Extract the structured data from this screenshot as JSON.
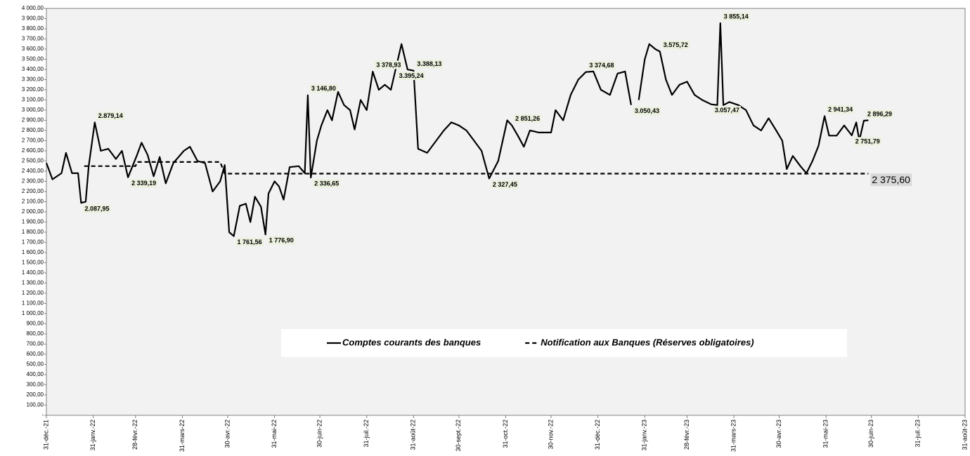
{
  "chart_data": {
    "type": "line",
    "xlim": [
      "2021-12-31",
      "2023-08-31"
    ],
    "xticks": [
      {
        "value": "2021-12-31",
        "label": "31-déc.-21"
      },
      {
        "value": "2022-01-31",
        "label": "31-janv.-22"
      },
      {
        "value": "2022-02-28",
        "label": "28-févr.-22"
      },
      {
        "value": "2022-03-31",
        "label": "31-mars-22"
      },
      {
        "value": "2022-04-30",
        "label": "30-avr.-22"
      },
      {
        "value": "2022-05-31",
        "label": "31-mai-22"
      },
      {
        "value": "2022-06-30",
        "label": "30-juin-22"
      },
      {
        "value": "2022-07-31",
        "label": "31-juil.-22"
      },
      {
        "value": "2022-08-31",
        "label": "31-août-22"
      },
      {
        "value": "2022-09-30",
        "label": "30-sept.-22"
      },
      {
        "value": "2022-10-31",
        "label": "31-oct.-22"
      },
      {
        "value": "2022-11-30",
        "label": "30-nov.-22"
      },
      {
        "value": "2022-12-31",
        "label": "31-déc.-22"
      },
      {
        "value": "2023-01-31",
        "label": "31-janv.-23"
      },
      {
        "value": "2023-02-28",
        "label": "28-févr.-23"
      },
      {
        "value": "2023-03-31",
        "label": "31-mars-23"
      },
      {
        "value": "2023-04-30",
        "label": "30-avr.-23"
      },
      {
        "value": "2023-05-31",
        "label": "31-mai-23"
      },
      {
        "value": "2023-06-30",
        "label": "30-juin-23"
      },
      {
        "value": "2023-07-31",
        "label": "31-juil.-23"
      },
      {
        "value": "2023-08-31",
        "label": "31-août-23"
      }
    ],
    "ylim": [
      0,
      4000
    ],
    "yticks": [
      {
        "value": 0,
        "label": "-"
      },
      {
        "value": 100,
        "label": "100,00"
      },
      {
        "value": 200,
        "label": "200,00"
      },
      {
        "value": 300,
        "label": "300,00"
      },
      {
        "value": 400,
        "label": "400,00"
      },
      {
        "value": 500,
        "label": "500,00"
      },
      {
        "value": 600,
        "label": "600,00"
      },
      {
        "value": 700,
        "label": "700,00"
      },
      {
        "value": 800,
        "label": "800,00"
      },
      {
        "value": 900,
        "label": "900,00"
      },
      {
        "value": 1000,
        "label": "1 000,00"
      },
      {
        "value": 1100,
        "label": "1 100,00"
      },
      {
        "value": 1200,
        "label": "1 200,00"
      },
      {
        "value": 1300,
        "label": "1 300,00"
      },
      {
        "value": 1400,
        "label": "1 400,00"
      },
      {
        "value": 1500,
        "label": "1 500,00"
      },
      {
        "value": 1600,
        "label": "1 600,00"
      },
      {
        "value": 1700,
        "label": "1 700,00"
      },
      {
        "value": 1800,
        "label": "1 800,00"
      },
      {
        "value": 1900,
        "label": "1 900,00"
      },
      {
        "value": 2000,
        "label": "2 000,00"
      },
      {
        "value": 2100,
        "label": "2 100,00"
      },
      {
        "value": 2200,
        "label": "2 200,00"
      },
      {
        "value": 2300,
        "label": "2 300,00"
      },
      {
        "value": 2400,
        "label": "2 400,00"
      },
      {
        "value": 2500,
        "label": "2 500,00"
      },
      {
        "value": 2600,
        "label": "2 600,00"
      },
      {
        "value": 2700,
        "label": "2 700,00"
      },
      {
        "value": 2800,
        "label": "2 800,00"
      },
      {
        "value": 2900,
        "label": "2 900,00"
      },
      {
        "value": 3000,
        "label": "3 000,00"
      },
      {
        "value": 3100,
        "label": "3 100,00"
      },
      {
        "value": 3200,
        "label": "3 200,00"
      },
      {
        "value": 3300,
        "label": "3 300,00"
      },
      {
        "value": 3400,
        "label": "3 400,00"
      },
      {
        "value": 3500,
        "label": "3 500,00"
      },
      {
        "value": 3600,
        "label": "3 600,00"
      },
      {
        "value": 3700,
        "label": "3 700,00"
      },
      {
        "value": 3800,
        "label": "3 800,00"
      },
      {
        "value": 3900,
        "label": "3 900,00"
      },
      {
        "value": 4000,
        "label": "4 000,00"
      }
    ],
    "grid": false,
    "legend": "bottom",
    "series": [
      {
        "name": "Comptes courants des banques",
        "color": "#000000",
        "dash": false,
        "x": [
          "2021-12-31",
          "2022-01-04",
          "2022-01-10",
          "2022-01-13",
          "2022-01-17",
          "2022-01-21",
          "2022-01-23",
          "2022-01-26",
          "2022-01-28",
          "2022-02-01",
          "2022-02-05",
          "2022-02-10",
          "2022-02-15",
          "2022-02-19",
          "2022-02-23",
          "2022-03-01",
          "2022-03-04",
          "2022-03-08",
          "2022-03-12",
          "2022-03-16",
          "2022-03-20",
          "2022-03-25",
          "2022-04-01",
          "2022-04-05",
          "2022-04-10",
          "2022-04-15",
          "2022-04-20",
          "2022-04-25",
          "2022-04-28",
          "2022-05-01",
          "2022-05-04",
          "2022-05-08",
          "2022-05-12",
          "2022-05-15",
          "2022-05-18",
          "2022-05-22",
          "2022-05-25",
          "2022-05-27",
          "2022-05-31",
          "2022-06-03",
          "2022-06-06",
          "2022-06-10",
          "2022-06-16",
          "2022-06-20",
          "2022-06-22",
          "2022-06-24",
          "2022-06-28",
          "2022-07-01",
          "2022-07-05",
          "2022-07-08",
          "2022-07-12",
          "2022-07-16",
          "2022-07-20",
          "2022-07-23",
          "2022-07-27",
          "2022-07-31",
          "2022-08-04",
          "2022-08-08",
          "2022-08-12",
          "2022-08-16",
          "2022-08-19",
          "2022-08-23",
          "2022-08-27",
          "2022-08-31",
          "2022-09-03",
          "2022-09-09",
          "2022-09-15",
          "2022-09-20",
          "2022-09-25",
          "2022-09-30",
          "2022-10-05",
          "2022-10-10",
          "2022-10-15",
          "2022-10-20",
          "2022-10-26",
          "2022-11-01",
          "2022-11-04",
          "2022-11-08",
          "2022-11-12",
          "2022-11-16",
          "2022-11-22",
          "2022-11-30",
          "2022-12-03",
          "2022-12-08",
          "2022-12-13",
          "2022-12-18",
          "2022-12-23",
          "2022-12-28",
          "2023-01-02",
          "2023-01-08",
          "2023-01-13",
          "2023-01-18",
          "2023-01-22",
          "2023-01-24",
          "2023-01-27",
          "2023-01-31",
          "2023-02-03",
          "2023-02-07",
          "2023-02-10",
          "2023-02-14",
          "2023-02-18",
          "2023-02-23",
          "2023-02-28",
          "2023-03-05",
          "2023-03-10",
          "2023-03-16",
          "2023-03-20",
          "2023-03-22",
          "2023-03-24",
          "2023-03-28",
          "2023-04-03",
          "2023-04-08",
          "2023-04-13",
          "2023-04-18",
          "2023-04-23",
          "2023-04-28",
          "2023-05-02",
          "2023-05-05",
          "2023-05-09",
          "2023-05-14",
          "2023-05-18",
          "2023-05-22",
          "2023-05-26",
          "2023-05-30",
          "2023-06-02",
          "2023-06-07",
          "2023-06-12",
          "2023-06-17",
          "2023-06-20",
          "2023-06-22",
          "2023-06-25",
          "2023-06-28"
        ],
        "values": [
          2480,
          2320,
          2380,
          2580,
          2380,
          2380,
          2087.95,
          2100,
          2450,
          2879.14,
          2600,
          2620,
          2520,
          2600,
          2339.19,
          2560,
          2680,
          2560,
          2350,
          2540,
          2280,
          2480,
          2600,
          2640,
          2500,
          2480,
          2200,
          2300,
          2460,
          1800,
          1761.56,
          2060,
          2080,
          1900,
          2150,
          2050,
          1776.9,
          2180,
          2300,
          2250,
          2120,
          2440,
          2450,
          2380,
          3146.8,
          2336.65,
          2700,
          2850,
          3000,
          2900,
          3180,
          3050,
          3000,
          2810,
          3100,
          3000,
          3378.93,
          3200,
          3250,
          3200,
          3395.24,
          3650,
          3400,
          3388.13,
          2620,
          2580,
          2700,
          2800,
          2880,
          2850,
          2800,
          2700,
          2600,
          2327.45,
          2500,
          2900,
          2851.26,
          2750,
          2640,
          2800,
          2780,
          2780,
          3000,
          2900,
          3150,
          3300,
          3374.68,
          3380,
          3200,
          3150,
          3360,
          3380,
          3050.43,
          null,
          3100,
          3500,
          3650,
          3600,
          3575.72,
          3300,
          3150,
          3250,
          3280,
          3150,
          3100,
          3057.47,
          3050,
          3855.14,
          3050,
          3080,
          3050,
          3000,
          2850,
          2800,
          2920,
          2800,
          2700,
          2420,
          2550,
          2450,
          2380,
          2500,
          2650,
          2941.34,
          2750,
          2750,
          2850,
          2751.79,
          2880,
          2700,
          2896.29,
          2900
        ],
        "value_labels": [
          null,
          null,
          null,
          null,
          null,
          null,
          "2.087,95",
          null,
          null,
          "2.879,14",
          null,
          null,
          null,
          null,
          "2 339,19",
          null,
          null,
          null,
          null,
          null,
          null,
          null,
          null,
          null,
          null,
          null,
          null,
          null,
          null,
          null,
          "1 761,56",
          null,
          null,
          null,
          null,
          null,
          "1 776,90",
          null,
          null,
          null,
          null,
          null,
          null,
          null,
          "3 146,80",
          "2 336,65",
          null,
          null,
          null,
          null,
          null,
          null,
          null,
          null,
          null,
          null,
          "3 378,93",
          null,
          null,
          null,
          "3.395,24",
          null,
          null,
          "3.388,13",
          null,
          null,
          null,
          null,
          null,
          null,
          null,
          null,
          null,
          "2 327,45",
          null,
          null,
          "2 851,26",
          null,
          null,
          null,
          null,
          null,
          null,
          null,
          null,
          null,
          "3 374,68",
          null,
          null,
          null,
          null,
          null,
          "3.050,43",
          null,
          null,
          null,
          null,
          null,
          "3.575,72",
          null,
          null,
          null,
          null,
          null,
          null,
          "3.057,47",
          null,
          "3 855,14",
          null,
          null,
          null,
          null,
          null,
          null,
          null,
          null,
          null,
          null,
          null,
          null,
          null,
          null,
          null,
          "2 941,34",
          null,
          null,
          null,
          "2 751,79",
          null,
          null,
          "2 896,29",
          null
        ]
      },
      {
        "name": "Notification aux Banques (Réserves obligatoires)",
        "color": "#000000",
        "dash": true,
        "x": [
          "2022-01-25",
          "2022-02-28",
          "2022-03-01",
          "2022-04-25",
          "2022-04-28",
          "2023-06-28"
        ],
        "values": [
          2450,
          2450,
          2490,
          2490,
          2375.6,
          2375.6
        ],
        "value_labels": [
          null,
          null,
          null,
          null,
          null,
          "2 375,60"
        ]
      }
    ]
  }
}
